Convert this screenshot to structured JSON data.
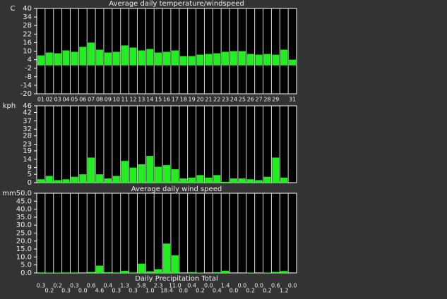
{
  "chart_data": [
    {
      "type": "bar",
      "title": "Average daily temperature/windspeed",
      "y_label": "C",
      "color": "#22ee22",
      "categories": [
        "01",
        "02",
        "03",
        "04",
        "05",
        "06",
        "07",
        "08",
        "09",
        "10",
        "11",
        "12",
        "13",
        "14",
        "15",
        "16",
        "17",
        "18",
        "19",
        "20",
        "21",
        "22",
        "23",
        "24",
        "25",
        "26",
        "27",
        "28",
        "29",
        null,
        "31"
      ],
      "values": [
        7,
        9,
        8.5,
        10.5,
        9.5,
        13,
        16,
        11,
        9,
        9.5,
        14,
        12.5,
        10.5,
        11.5,
        9,
        9.5,
        10.5,
        6.5,
        6.5,
        7.5,
        8,
        8.5,
        9.5,
        10,
        10,
        8,
        7.5,
        8,
        7.5,
        11,
        4
      ],
      "ylim": [
        -20,
        40
      ],
      "yticks": [
        -20,
        -14,
        -8,
        -2,
        4,
        10,
        16,
        22,
        28,
        34,
        40
      ]
    },
    {
      "type": "bar",
      "title": "Average daily wind speed",
      "y_label": "kph",
      "color": "#22ee22",
      "values": [
        2,
        4,
        1.5,
        2,
        3.5,
        5,
        15,
        5,
        2.5,
        4,
        13,
        9,
        11,
        16,
        9.5,
        10.5,
        8,
        2.5,
        3,
        4.5,
        3,
        4.5,
        0.5,
        2.5,
        2.5,
        2,
        1.5,
        3.5,
        15,
        3,
        0
      ],
      "ylim": [
        0,
        46
      ],
      "yticks": [
        0,
        5,
        9,
        14,
        19,
        23,
        28,
        32,
        37,
        42,
        46
      ]
    },
    {
      "type": "bar",
      "title": "Daily Precipitation Total",
      "y_label": "mm",
      "color": "#22ee22",
      "values": [
        0.3,
        0.2,
        0.2,
        0.3,
        0.3,
        0,
        0.6,
        4.6,
        0.4,
        0.3,
        1.3,
        0.3,
        5.8,
        1,
        2.3,
        18.4,
        11,
        0,
        0.4,
        0.2,
        0,
        0.4,
        1.4,
        0,
        0,
        0.2,
        0,
        0.2,
        0.6,
        1.2,
        0
      ],
      "value_labels": [
        "0.3",
        "0.2",
        "0.2",
        "0.3",
        "0.3",
        "0.0",
        "0.6",
        "4.6",
        "0.4",
        "0.3",
        "1.3",
        "0.3",
        "5.8",
        "1.0",
        "2.3",
        "18.4",
        "11.0",
        "0.0",
        "0.4",
        "0.2",
        "0.0",
        "0.4",
        "1.4",
        "0.0",
        "0.0",
        "0.2",
        "0.0",
        "0.2",
        "0.6",
        "1.2",
        "0.0"
      ],
      "ylim": [
        0,
        50
      ],
      "yticks": [
        {
          "value": 0,
          "label": "0.0"
        },
        {
          "value": 5,
          "label": "5.0"
        },
        {
          "value": 10,
          "label": "10.0"
        },
        {
          "value": 15,
          "label": "15.0"
        },
        {
          "value": 20,
          "label": "20.0"
        },
        {
          "value": 25,
          "label": "25.0"
        },
        {
          "value": 30,
          "label": "30.0"
        },
        {
          "value": 35,
          "label": "35.0"
        },
        {
          "value": 40,
          "label": "40.0"
        },
        {
          "value": 45,
          "label": "45.0"
        },
        {
          "value": 50,
          "label": "50.0"
        }
      ]
    }
  ]
}
